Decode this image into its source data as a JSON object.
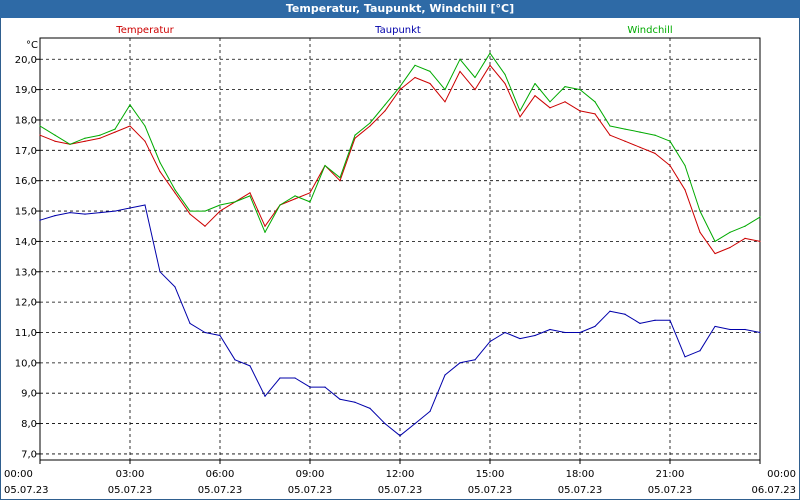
{
  "chart_data": {
    "type": "line",
    "title": "Temperatur, Taupunkt, Windchill [°C]",
    "ylabel": "°C",
    "xlabel": "",
    "ylim": [
      6.8,
      20.7
    ],
    "yticks": [
      "20,0",
      "19,0",
      "18,0",
      "17,0",
      "16,0",
      "15,0",
      "14,0",
      "13,0",
      "12,0",
      "11,0",
      "10,0",
      "9,0",
      "8,0",
      "7,0"
    ],
    "ytick_values": [
      20,
      19,
      18,
      17,
      16,
      15,
      14,
      13,
      12,
      11,
      10,
      9,
      8,
      7
    ],
    "xlim": [
      0,
      24
    ],
    "xticks": [
      {
        "h": 0,
        "time": "00:00",
        "date": "05.07.23"
      },
      {
        "h": 3,
        "time": "03:00",
        "date": "05.07.23"
      },
      {
        "h": 6,
        "time": "06:00",
        "date": "05.07.23"
      },
      {
        "h": 9,
        "time": "09:00",
        "date": "05.07.23"
      },
      {
        "h": 12,
        "time": "12:00",
        "date": "05.07.23"
      },
      {
        "h": 15,
        "time": "15:00",
        "date": "05.07.23"
      },
      {
        "h": 18,
        "time": "18:00",
        "date": "05.07.23"
      },
      {
        "h": 21,
        "time": "21:00",
        "date": "05.07.23"
      },
      {
        "h": 24,
        "time": "00:00",
        "date": "06.07.23"
      }
    ],
    "grid": true,
    "legend_position": "top",
    "x": [
      0,
      0.5,
      1,
      1.5,
      2,
      2.5,
      3,
      3.5,
      4,
      4.5,
      5,
      5.5,
      6,
      6.5,
      7,
      7.5,
      8,
      8.5,
      9,
      9.5,
      10,
      10.5,
      11,
      11.5,
      12,
      12.5,
      13,
      13.5,
      14,
      14.5,
      15,
      15.5,
      16,
      16.5,
      17,
      17.5,
      18,
      18.5,
      19,
      19.5,
      20,
      20.5,
      21,
      21.5,
      22,
      22.5,
      23,
      23.5,
      24
    ],
    "series": [
      {
        "name": "Temperatur",
        "color": "#cc0000",
        "values": [
          17.5,
          17.3,
          17.2,
          17.3,
          17.4,
          17.6,
          17.8,
          17.3,
          16.3,
          15.6,
          14.9,
          14.5,
          15.0,
          15.3,
          15.6,
          14.5,
          15.2,
          15.4,
          15.6,
          16.5,
          16.0,
          17.4,
          17.8,
          18.3,
          19.0,
          19.4,
          19.2,
          18.6,
          19.6,
          19.0,
          19.8,
          19.2,
          18.1,
          18.8,
          18.4,
          18.6,
          18.3,
          18.2,
          17.5,
          17.3,
          17.1,
          16.9,
          16.5,
          15.7,
          14.3,
          13.6,
          13.8,
          14.1,
          14.0
        ]
      },
      {
        "name": "Taupunkt",
        "color": "#0000aa",
        "values": [
          14.7,
          14.85,
          14.95,
          14.9,
          14.95,
          15.0,
          15.1,
          15.2,
          13.0,
          12.5,
          11.3,
          11.0,
          10.9,
          10.1,
          9.9,
          8.9,
          9.5,
          9.5,
          9.2,
          9.2,
          8.8,
          8.7,
          8.5,
          8.0,
          7.6,
          8.0,
          8.4,
          9.6,
          10.0,
          10.1,
          10.7,
          11.0,
          10.8,
          10.9,
          11.1,
          11.0,
          11.0,
          11.2,
          11.7,
          11.6,
          11.3,
          11.4,
          11.4,
          10.2,
          10.4,
          11.2,
          11.1,
          11.1,
          11.0
        ]
      },
      {
        "name": "Windchill",
        "color": "#00aa00",
        "values": [
          17.8,
          17.5,
          17.2,
          17.4,
          17.5,
          17.7,
          18.5,
          17.8,
          16.6,
          15.7,
          15.0,
          15.0,
          15.2,
          15.3,
          15.5,
          14.3,
          15.2,
          15.5,
          15.3,
          16.5,
          16.1,
          17.5,
          17.9,
          18.5,
          19.1,
          19.8,
          19.6,
          19.0,
          20.0,
          19.4,
          20.2,
          19.5,
          18.3,
          19.2,
          18.6,
          19.1,
          19.0,
          18.6,
          17.8,
          17.7,
          17.6,
          17.5,
          17.3,
          16.5,
          15.0,
          14.0,
          14.3,
          14.5,
          14.8
        ]
      }
    ]
  }
}
